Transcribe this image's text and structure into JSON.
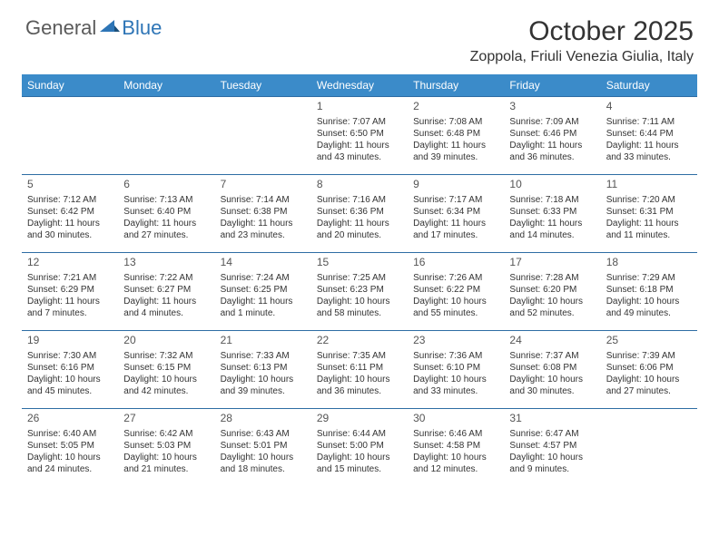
{
  "logo": {
    "general": "General",
    "blue": "Blue"
  },
  "title": "October 2025",
  "location": "Zoppola, Friuli Venezia Giulia, Italy",
  "colors": {
    "header_bg": "#3b8bc9",
    "header_text": "#ffffff",
    "border": "#2e6da4",
    "logo_gray": "#5a5a5a",
    "logo_blue": "#2e75b6"
  },
  "day_headers": [
    "Sunday",
    "Monday",
    "Tuesday",
    "Wednesday",
    "Thursday",
    "Friday",
    "Saturday"
  ],
  "weeks": [
    [
      {
        "num": "",
        "text": ""
      },
      {
        "num": "",
        "text": ""
      },
      {
        "num": "",
        "text": ""
      },
      {
        "num": "1",
        "text": "Sunrise: 7:07 AM\nSunset: 6:50 PM\nDaylight: 11 hours and 43 minutes."
      },
      {
        "num": "2",
        "text": "Sunrise: 7:08 AM\nSunset: 6:48 PM\nDaylight: 11 hours and 39 minutes."
      },
      {
        "num": "3",
        "text": "Sunrise: 7:09 AM\nSunset: 6:46 PM\nDaylight: 11 hours and 36 minutes."
      },
      {
        "num": "4",
        "text": "Sunrise: 7:11 AM\nSunset: 6:44 PM\nDaylight: 11 hours and 33 minutes."
      }
    ],
    [
      {
        "num": "5",
        "text": "Sunrise: 7:12 AM\nSunset: 6:42 PM\nDaylight: 11 hours and 30 minutes."
      },
      {
        "num": "6",
        "text": "Sunrise: 7:13 AM\nSunset: 6:40 PM\nDaylight: 11 hours and 27 minutes."
      },
      {
        "num": "7",
        "text": "Sunrise: 7:14 AM\nSunset: 6:38 PM\nDaylight: 11 hours and 23 minutes."
      },
      {
        "num": "8",
        "text": "Sunrise: 7:16 AM\nSunset: 6:36 PM\nDaylight: 11 hours and 20 minutes."
      },
      {
        "num": "9",
        "text": "Sunrise: 7:17 AM\nSunset: 6:34 PM\nDaylight: 11 hours and 17 minutes."
      },
      {
        "num": "10",
        "text": "Sunrise: 7:18 AM\nSunset: 6:33 PM\nDaylight: 11 hours and 14 minutes."
      },
      {
        "num": "11",
        "text": "Sunrise: 7:20 AM\nSunset: 6:31 PM\nDaylight: 11 hours and 11 minutes."
      }
    ],
    [
      {
        "num": "12",
        "text": "Sunrise: 7:21 AM\nSunset: 6:29 PM\nDaylight: 11 hours and 7 minutes."
      },
      {
        "num": "13",
        "text": "Sunrise: 7:22 AM\nSunset: 6:27 PM\nDaylight: 11 hours and 4 minutes."
      },
      {
        "num": "14",
        "text": "Sunrise: 7:24 AM\nSunset: 6:25 PM\nDaylight: 11 hours and 1 minute."
      },
      {
        "num": "15",
        "text": "Sunrise: 7:25 AM\nSunset: 6:23 PM\nDaylight: 10 hours and 58 minutes."
      },
      {
        "num": "16",
        "text": "Sunrise: 7:26 AM\nSunset: 6:22 PM\nDaylight: 10 hours and 55 minutes."
      },
      {
        "num": "17",
        "text": "Sunrise: 7:28 AM\nSunset: 6:20 PM\nDaylight: 10 hours and 52 minutes."
      },
      {
        "num": "18",
        "text": "Sunrise: 7:29 AM\nSunset: 6:18 PM\nDaylight: 10 hours and 49 minutes."
      }
    ],
    [
      {
        "num": "19",
        "text": "Sunrise: 7:30 AM\nSunset: 6:16 PM\nDaylight: 10 hours and 45 minutes."
      },
      {
        "num": "20",
        "text": "Sunrise: 7:32 AM\nSunset: 6:15 PM\nDaylight: 10 hours and 42 minutes."
      },
      {
        "num": "21",
        "text": "Sunrise: 7:33 AM\nSunset: 6:13 PM\nDaylight: 10 hours and 39 minutes."
      },
      {
        "num": "22",
        "text": "Sunrise: 7:35 AM\nSunset: 6:11 PM\nDaylight: 10 hours and 36 minutes."
      },
      {
        "num": "23",
        "text": "Sunrise: 7:36 AM\nSunset: 6:10 PM\nDaylight: 10 hours and 33 minutes."
      },
      {
        "num": "24",
        "text": "Sunrise: 7:37 AM\nSunset: 6:08 PM\nDaylight: 10 hours and 30 minutes."
      },
      {
        "num": "25",
        "text": "Sunrise: 7:39 AM\nSunset: 6:06 PM\nDaylight: 10 hours and 27 minutes."
      }
    ],
    [
      {
        "num": "26",
        "text": "Sunrise: 6:40 AM\nSunset: 5:05 PM\nDaylight: 10 hours and 24 minutes."
      },
      {
        "num": "27",
        "text": "Sunrise: 6:42 AM\nSunset: 5:03 PM\nDaylight: 10 hours and 21 minutes."
      },
      {
        "num": "28",
        "text": "Sunrise: 6:43 AM\nSunset: 5:01 PM\nDaylight: 10 hours and 18 minutes."
      },
      {
        "num": "29",
        "text": "Sunrise: 6:44 AM\nSunset: 5:00 PM\nDaylight: 10 hours and 15 minutes."
      },
      {
        "num": "30",
        "text": "Sunrise: 6:46 AM\nSunset: 4:58 PM\nDaylight: 10 hours and 12 minutes."
      },
      {
        "num": "31",
        "text": "Sunrise: 6:47 AM\nSunset: 4:57 PM\nDaylight: 10 hours and 9 minutes."
      },
      {
        "num": "",
        "text": ""
      }
    ]
  ]
}
